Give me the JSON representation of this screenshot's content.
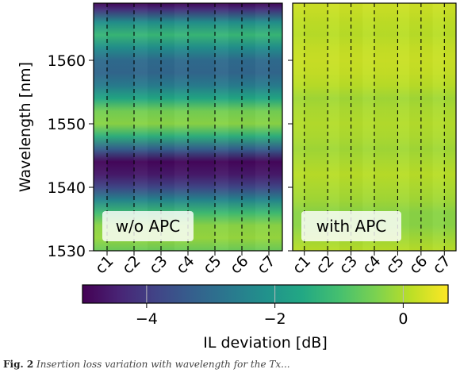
{
  "chart_data": [
    {
      "type": "heatmap",
      "panel_label": "w/o APC",
      "x": [
        "c1",
        "c2",
        "c3",
        "c4",
        "c5",
        "c6",
        "c7"
      ],
      "ylabel": "Wavelength [nm]",
      "ylim": [
        1530,
        1569
      ],
      "yticks": [
        1530,
        1540,
        1550,
        1560
      ],
      "ytick_labels": [
        "1530",
        "1540",
        "1550",
        "1560"
      ],
      "profile_wavelength_nm": [
        1530,
        1532,
        1534,
        1536,
        1538,
        1540,
        1542,
        1544,
        1546,
        1548,
        1550,
        1552,
        1554,
        1556,
        1558,
        1560,
        1562,
        1564,
        1566,
        1568,
        1569
      ],
      "profile_il_deviation_db": [
        -0.6,
        -0.2,
        -0.3,
        -1.1,
        -2.4,
        -3.8,
        -4.6,
        -4.9,
        -3.3,
        -1.4,
        -0.3,
        -0.5,
        -1.6,
        -2.6,
        -3.1,
        -3.0,
        -2.2,
        -1.2,
        -2.2,
        -4.2,
        -4.9
      ],
      "column_dividers": "dashed"
    },
    {
      "type": "heatmap",
      "panel_label": "with APC",
      "x": [
        "c1",
        "c2",
        "c3",
        "c4",
        "c5",
        "c6",
        "c7"
      ],
      "ylim": [
        1530,
        1569
      ],
      "profile_wavelength_nm": [
        1530,
        1532,
        1534,
        1536,
        1538,
        1540,
        1542,
        1544,
        1546,
        1548,
        1550,
        1552,
        1554,
        1556,
        1558,
        1560,
        1562,
        1564,
        1566,
        1568,
        1569
      ],
      "profile_il_deviation_db": [
        0.1,
        -0.1,
        -0.3,
        -0.3,
        -0.1,
        0.0,
        0.1,
        0.0,
        -0.1,
        0.0,
        0.05,
        0.0,
        -0.1,
        0.1,
        0.2,
        0.25,
        0.2,
        0.1,
        0.15,
        0.25,
        0.3
      ],
      "column_dividers": "dashed"
    }
  ],
  "colorbar": {
    "label": "IL deviation [dB]",
    "colormap": "viridis",
    "range": [
      -5,
      0.7
    ],
    "ticks": [
      -4,
      -2,
      0
    ],
    "tick_labels": [
      "−4",
      "−2",
      "0"
    ]
  },
  "caption": {
    "lead": "Fig. 2",
    "text": "Insertion loss variation with wavelength for the Tx..."
  }
}
